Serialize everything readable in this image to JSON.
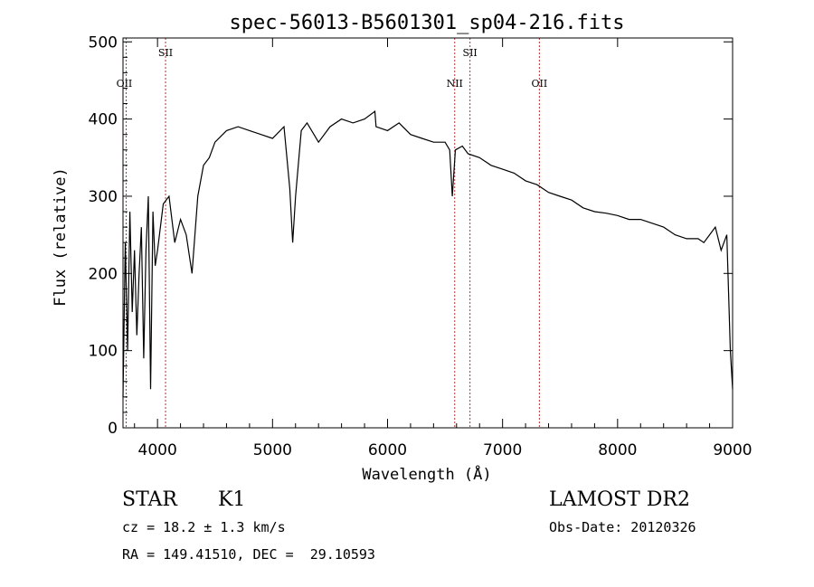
{
  "chart_data": {
    "type": "line",
    "title": "spec-56013-B5601301_sp04-216.fits",
    "xlabel": "Wavelength (Å)",
    "ylabel": "Flux (relative)",
    "xlim": [
      3700,
      9000
    ],
    "ylim": [
      0,
      505
    ],
    "x_ticks": [
      4000,
      5000,
      6000,
      7000,
      8000,
      9000
    ],
    "y_ticks": [
      0,
      100,
      200,
      300,
      400,
      500
    ],
    "grid": false,
    "lines": [
      {
        "label": "OII",
        "x": 3727
      },
      {
        "label": "SII",
        "x": 4070
      },
      {
        "label": "NII",
        "x": 6584
      },
      {
        "label": "SII",
        "x": 6717
      },
      {
        "label": "OII",
        "x": 7320
      }
    ],
    "series": [
      {
        "name": "spectrum",
        "x": [
          3700,
          3720,
          3740,
          3760,
          3780,
          3800,
          3820,
          3840,
          3860,
          3880,
          3900,
          3920,
          3940,
          3960,
          3980,
          4000,
          4050,
          4100,
          4150,
          4200,
          4250,
          4300,
          4350,
          4400,
          4450,
          4500,
          4600,
          4700,
          4800,
          4900,
          5000,
          5100,
          5150,
          5175,
          5200,
          5250,
          5300,
          5400,
          5500,
          5600,
          5700,
          5800,
          5890,
          5900,
          6000,
          6100,
          6200,
          6300,
          6400,
          6500,
          6540,
          6563,
          6590,
          6650,
          6700,
          6800,
          6900,
          7000,
          7100,
          7200,
          7300,
          7400,
          7500,
          7600,
          7700,
          7800,
          7900,
          8000,
          8100,
          8200,
          8300,
          8400,
          8500,
          8600,
          8700,
          8750,
          8800,
          8850,
          8900,
          8950,
          8980,
          9000
        ],
        "y": [
          40,
          240,
          100,
          280,
          150,
          230,
          120,
          200,
          260,
          90,
          230,
          300,
          50,
          280,
          210,
          230,
          290,
          300,
          240,
          270,
          250,
          200,
          300,
          340,
          350,
          370,
          385,
          390,
          385,
          380,
          375,
          390,
          310,
          240,
          300,
          385,
          395,
          370,
          390,
          400,
          395,
          400,
          410,
          390,
          385,
          395,
          380,
          375,
          370,
          370,
          360,
          300,
          360,
          365,
          355,
          350,
          340,
          335,
          330,
          320,
          315,
          305,
          300,
          295,
          285,
          280,
          278,
          275,
          270,
          270,
          265,
          260,
          250,
          245,
          245,
          240,
          250,
          260,
          230,
          250,
          100,
          50
        ]
      }
    ]
  },
  "info": {
    "object_type": "STAR",
    "subclass": "K1",
    "survey": "LAMOST DR2",
    "velocity": "cz = 18.2 ± 1.3 km/s",
    "obs_date": "Obs-Date: 20120326",
    "coords": "RA = 149.41510, DEC =  29.10593"
  }
}
